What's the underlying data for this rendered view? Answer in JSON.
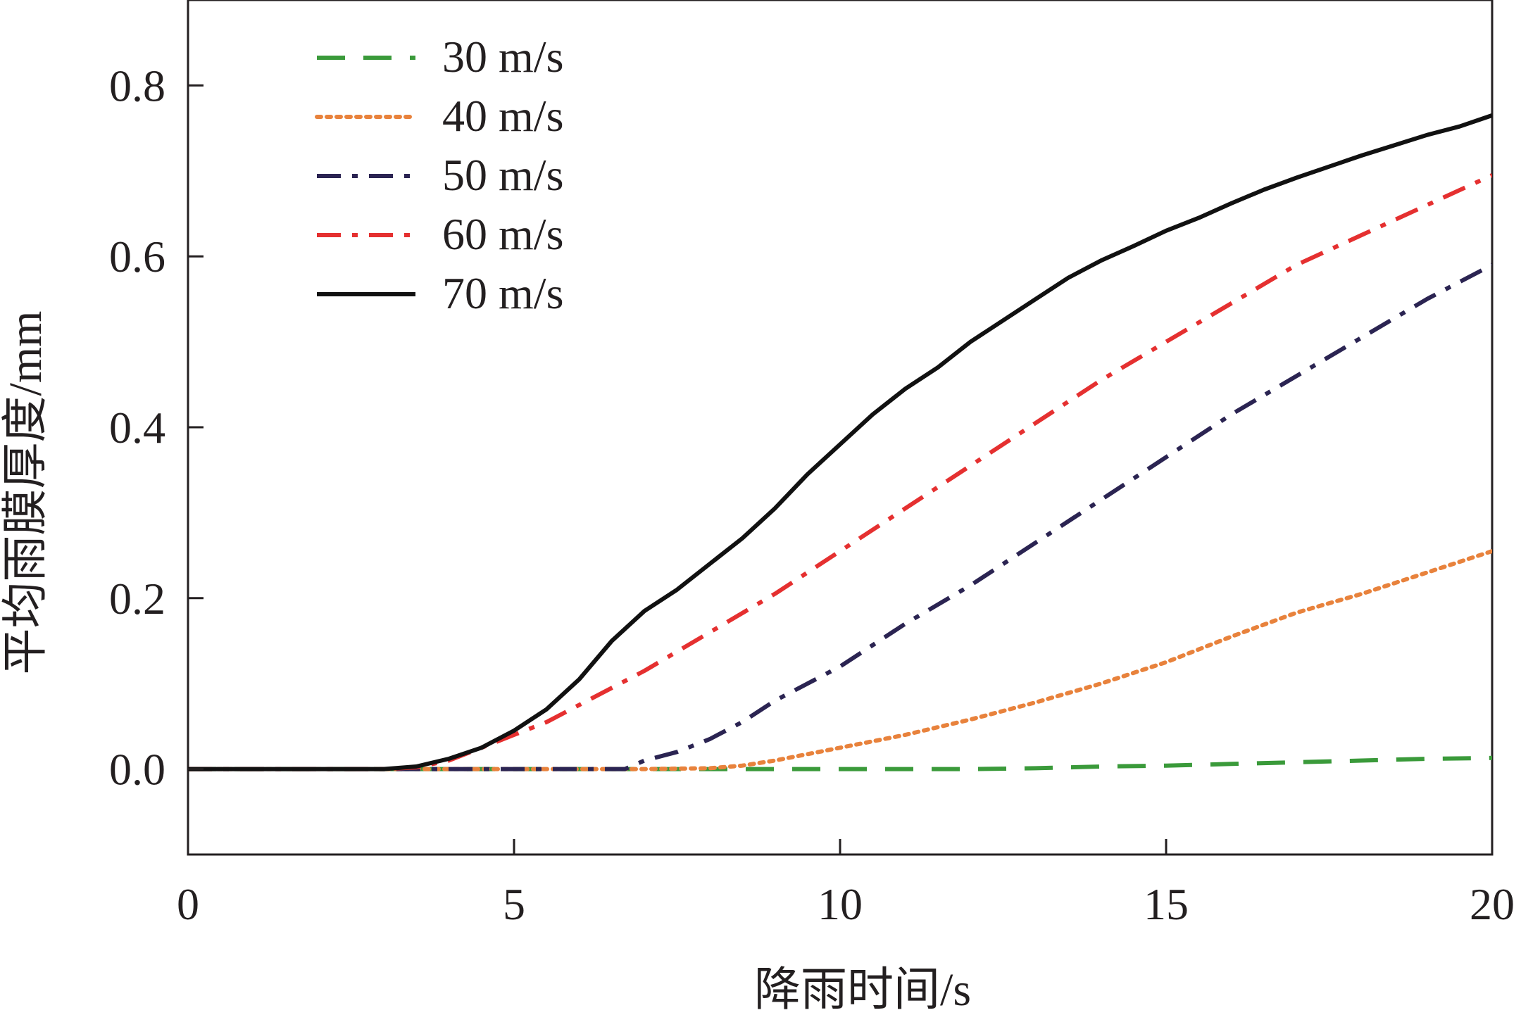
{
  "chart_data": {
    "type": "line",
    "title": "",
    "xlabel": "降雨时间/s",
    "ylabel": "平均雨膜厚度/mm",
    "xlim": [
      0,
      20
    ],
    "ylim": [
      -0.1,
      0.9
    ],
    "x_ticks": [
      0,
      5,
      10,
      15,
      20
    ],
    "x_tick_labels": [
      "0",
      "5",
      "10",
      "15",
      "20"
    ],
    "y_ticks": [
      0.0,
      0.2,
      0.4,
      0.6,
      0.8
    ],
    "y_tick_labels": [
      "0.0",
      "0.2",
      "0.4",
      "0.6",
      "0.8"
    ],
    "grid": false,
    "legend_position": "top-left",
    "series": [
      {
        "name": "30 m/s",
        "color": "#3a9a3a",
        "style": "dashed",
        "points": [
          [
            0,
            0
          ],
          [
            8,
            0
          ],
          [
            12,
            0.0
          ],
          [
            13,
            0.001
          ],
          [
            14,
            0.003
          ],
          [
            15,
            0.004
          ],
          [
            16,
            0.006
          ],
          [
            17,
            0.008
          ],
          [
            18,
            0.01
          ],
          [
            19,
            0.012
          ],
          [
            20,
            0.013
          ]
        ]
      },
      {
        "name": "40 m/s",
        "color": "#e8823c",
        "style": "dotted",
        "points": [
          [
            0,
            0
          ],
          [
            7,
            0
          ],
          [
            8,
            0.001
          ],
          [
            8.5,
            0.004
          ],
          [
            9,
            0.01
          ],
          [
            10,
            0.025
          ],
          [
            11,
            0.04
          ],
          [
            12,
            0.058
          ],
          [
            13,
            0.078
          ],
          [
            14,
            0.1
          ],
          [
            15,
            0.125
          ],
          [
            16,
            0.155
          ],
          [
            17,
            0.183
          ],
          [
            18,
            0.205
          ],
          [
            19,
            0.23
          ],
          [
            20,
            0.255
          ]
        ]
      },
      {
        "name": "50 m/s",
        "color": "#2b2452",
        "style": "dashdot",
        "points": [
          [
            0,
            0
          ],
          [
            6.7,
            0
          ],
          [
            7,
            0.01
          ],
          [
            7.5,
            0.02
          ],
          [
            8,
            0.035
          ],
          [
            8.5,
            0.055
          ],
          [
            9,
            0.08
          ],
          [
            10,
            0.12
          ],
          [
            11,
            0.17
          ],
          [
            12,
            0.215
          ],
          [
            13,
            0.265
          ],
          [
            14,
            0.315
          ],
          [
            15,
            0.365
          ],
          [
            16,
            0.415
          ],
          [
            17,
            0.46
          ],
          [
            18,
            0.505
          ],
          [
            19,
            0.55
          ],
          [
            20,
            0.59
          ]
        ]
      },
      {
        "name": "60 m/s",
        "color": "#e53030",
        "style": "dashdot",
        "points": [
          [
            0,
            0
          ],
          [
            3,
            0
          ],
          [
            3.5,
            0.002
          ],
          [
            4,
            0.01
          ],
          [
            4.5,
            0.025
          ],
          [
            5,
            0.04
          ],
          [
            5.5,
            0.055
          ],
          [
            6,
            0.075
          ],
          [
            7,
            0.115
          ],
          [
            8,
            0.16
          ],
          [
            9,
            0.205
          ],
          [
            10,
            0.255
          ],
          [
            11,
            0.305
          ],
          [
            12,
            0.355
          ],
          [
            13,
            0.405
          ],
          [
            14,
            0.455
          ],
          [
            15,
            0.5
          ],
          [
            16,
            0.545
          ],
          [
            17,
            0.59
          ],
          [
            18,
            0.625
          ],
          [
            19,
            0.66
          ],
          [
            20,
            0.695
          ]
        ]
      },
      {
        "name": "70 m/s",
        "color": "#111111",
        "style": "solid",
        "points": [
          [
            0,
            0
          ],
          [
            3,
            0
          ],
          [
            3.5,
            0.003
          ],
          [
            4,
            0.012
          ],
          [
            4.5,
            0.025
          ],
          [
            5,
            0.045
          ],
          [
            5.5,
            0.07
          ],
          [
            6,
            0.105
          ],
          [
            6.5,
            0.15
          ],
          [
            7,
            0.185
          ],
          [
            7.5,
            0.21
          ],
          [
            8,
            0.24
          ],
          [
            8.5,
            0.27
          ],
          [
            9,
            0.305
          ],
          [
            9.5,
            0.345
          ],
          [
            10,
            0.38
          ],
          [
            10.5,
            0.415
          ],
          [
            11,
            0.445
          ],
          [
            11.5,
            0.47
          ],
          [
            12,
            0.5
          ],
          [
            12.5,
            0.525
          ],
          [
            13,
            0.55
          ],
          [
            13.5,
            0.575
          ],
          [
            14,
            0.595
          ],
          [
            14.5,
            0.612
          ],
          [
            15,
            0.63
          ],
          [
            15.5,
            0.645
          ],
          [
            16,
            0.662
          ],
          [
            16.5,
            0.678
          ],
          [
            17,
            0.692
          ],
          [
            17.5,
            0.705
          ],
          [
            18,
            0.718
          ],
          [
            18.5,
            0.73
          ],
          [
            19,
            0.742
          ],
          [
            19.5,
            0.752
          ],
          [
            20,
            0.765
          ]
        ]
      }
    ]
  }
}
